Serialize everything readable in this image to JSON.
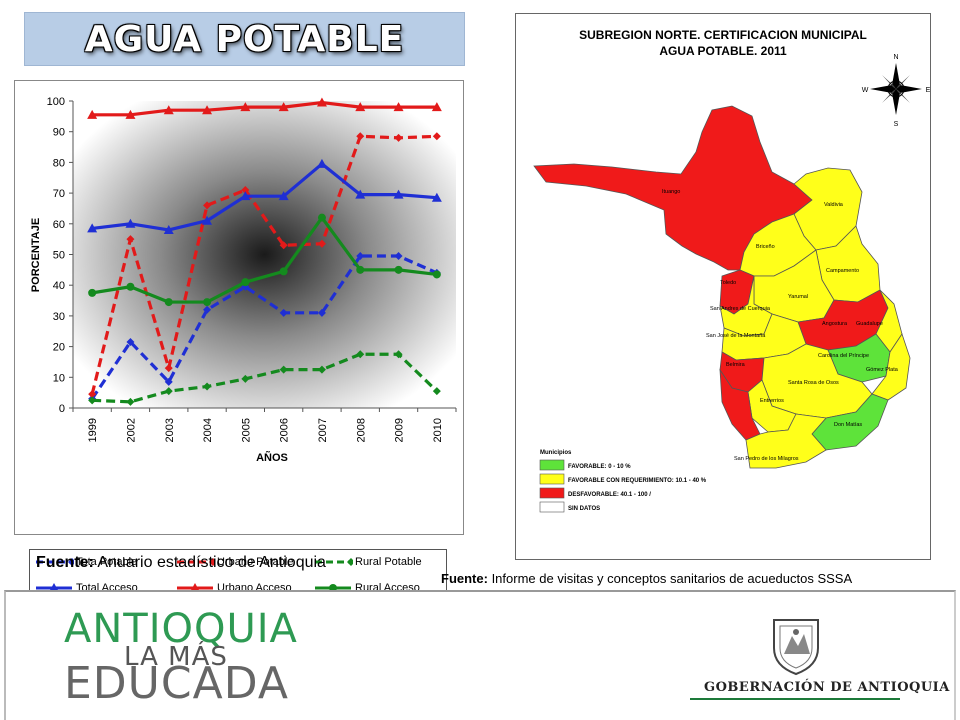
{
  "header": {
    "title": "AGUA POTABLE"
  },
  "chart_data": {
    "type": "line",
    "title": "",
    "xlabel": "AÑOS",
    "ylabel": "PORCENTAJE",
    "categories": [
      "1999",
      "2002",
      "2003",
      "2004",
      "2005",
      "2006",
      "2007",
      "2008",
      "2009",
      "2010"
    ],
    "ylim": [
      0,
      100
    ],
    "yticks": [
      0,
      10,
      20,
      30,
      40,
      50,
      60,
      70,
      80,
      90,
      100
    ],
    "legend_position": "bottom",
    "series": [
      {
        "name": "Tota Potable",
        "color": "#1f2fd4",
        "style": "dashed",
        "marker": "diamond",
        "values": [
          3,
          21.5,
          8.5,
          32,
          39.5,
          31,
          31,
          49.5,
          49.5,
          44
        ]
      },
      {
        "name": "Urbano Potable",
        "color": "#e21a1a",
        "style": "dashed",
        "marker": "diamond",
        "values": [
          4.5,
          55,
          13,
          66,
          71,
          53,
          53.5,
          88.5,
          88,
          88.5
        ]
      },
      {
        "name": "Rural Potable",
        "color": "#148a1e",
        "style": "dashed",
        "marker": "diamond",
        "values": [
          2.5,
          2,
          5.5,
          7,
          9.5,
          12.5,
          12.5,
          17.5,
          17.5,
          5.5
        ]
      },
      {
        "name": "Total Acceso",
        "color": "#1f2fd4",
        "style": "solid",
        "marker": "triangle",
        "values": [
          58.5,
          60,
          58,
          61,
          69,
          69,
          79.5,
          69.5,
          69.5,
          68.5
        ]
      },
      {
        "name": "Urbano Acceso",
        "color": "#e21a1a",
        "style": "solid",
        "marker": "triangle",
        "values": [
          95.5,
          95.5,
          97,
          97,
          98,
          98,
          99.5,
          98,
          98,
          98
        ]
      },
      {
        "name": "Rural Acceso",
        "color": "#148a1e",
        "style": "solid",
        "marker": "circle",
        "values": [
          37.5,
          39.5,
          34.5,
          34.5,
          41,
          44.5,
          62,
          45,
          45,
          43.5
        ]
      }
    ]
  },
  "fuente_left": {
    "label": "Fuente:",
    "text": " Anuario estadístico de Antioquia"
  },
  "fuente_right": {
    "label": "Fuente:",
    "text": " Informe de visitas y conceptos sanitarios de acueductos SSSA"
  },
  "map": {
    "title_line1": "SUBREGION NORTE. CERTIFICACION MUNICIPAL",
    "title_line2": "AGUA POTABLE.  2011",
    "compass": {
      "n": "N",
      "s": "S",
      "e": "E",
      "w": "W"
    },
    "municipios": [
      "Ituango",
      "Valdivia",
      "Briceño",
      "Toledo",
      "Campamento",
      "Yarumal",
      "San Andres de Cuerquia",
      "Angostura",
      "Guadalupe",
      "San José de la Montaña",
      "Carolina del Príncipe",
      "Gómez Plata",
      "Belmira",
      "Santa Rosa de Osos",
      "Entrerrios",
      "Don Matías",
      "San Pedro de los Milagros"
    ],
    "legend_title": "Municipios",
    "legend": [
      {
        "label": "FAVORABLE: 0 - 10 %",
        "color": "#5ee33a"
      },
      {
        "label": "FAVORABLE CON REQUERIMIENTO: 10.1 - 40 %",
        "color": "#ffff1a"
      },
      {
        "label": "DESFAVORABLE: 40.1 - 100 /",
        "color": "#f01a1a"
      },
      {
        "label": "SIN DATOS",
        "color": "#ffffff"
      }
    ]
  },
  "footer": {
    "logo_line1": "ANTIOQUIA",
    "logo_line2": "LA MÁS",
    "logo_line3": "EDUCADA",
    "gobernacion": "GOBERNACIÓN DE ANTIOQUIA",
    "accent": "#2e9a53"
  }
}
